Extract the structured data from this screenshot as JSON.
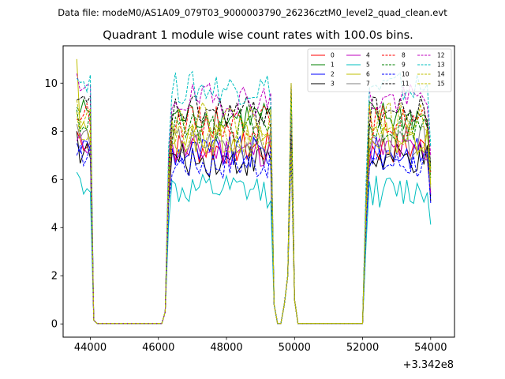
{
  "chart_data": {
    "type": "line",
    "subtitle": "Data file: modeM0/AS1A09_079T03_9000003790_26236cztM0_level2_quad_clean.evt",
    "title": "Quadrant 1 module wise count rates with 100.0s bins.",
    "xlabel": "",
    "ylabel": "",
    "x_offset_label": "+3.342e8",
    "xlim": [
      43200,
      54700
    ],
    "ylim": [
      -0.55,
      11.55
    ],
    "x_ticks": [
      44000,
      46000,
      48000,
      50000,
      52000,
      54000
    ],
    "x_tick_labels": [
      "44000",
      "46000",
      "48000",
      "50000",
      "52000",
      "54000"
    ],
    "y_ticks": [
      0,
      2,
      4,
      6,
      8,
      10
    ],
    "y_tick_labels": [
      "0",
      "2",
      "4",
      "6",
      "8",
      "10"
    ],
    "legend_position": "upper-right",
    "segments": [
      {
        "name": "seg1",
        "start": 43600,
        "n_plateau": 5
      },
      {
        "name": "gap1",
        "start": 44100,
        "end": 46100
      },
      {
        "name": "seg2",
        "start": 46200,
        "end": 49300
      },
      {
        "name": "spike",
        "at": 49900
      },
      {
        "name": "gap2",
        "start": 50100,
        "end": 52000
      },
      {
        "name": "seg3",
        "start": 52100,
        "end": 54000
      }
    ],
    "series": [
      {
        "name": "0",
        "color": "#ff0000",
        "dash": false,
        "level": 7.3,
        "first": 8.0
      },
      {
        "name": "1",
        "color": "#008000",
        "dash": false,
        "level": 8.6,
        "first": 9.0
      },
      {
        "name": "2",
        "color": "#0000ff",
        "dash": false,
        "level": 7.1,
        "first": 7.5
      },
      {
        "name": "3",
        "color": "#000000",
        "dash": false,
        "level": 6.8,
        "first": 8.0
      },
      {
        "name": "4",
        "color": "#bf00bf",
        "dash": false,
        "level": 7.2,
        "first": 7.6
      },
      {
        "name": "5",
        "color": "#00bfbf",
        "dash": false,
        "level": 5.5,
        "first": 6.3
      },
      {
        "name": "6",
        "color": "#bfbf00",
        "dash": false,
        "level": 7.7,
        "first": 11.0
      },
      {
        "name": "7",
        "color": "#808080",
        "dash": false,
        "level": 7.5,
        "first": 8.3
      },
      {
        "name": "8",
        "color": "#ff0000",
        "dash": true,
        "level": 8.4,
        "first": 8.5
      },
      {
        "name": "9",
        "color": "#008000",
        "dash": true,
        "level": 8.1,
        "first": 8.9
      },
      {
        "name": "10",
        "color": "#0000ff",
        "dash": true,
        "level": 6.7,
        "first": 7.0
      },
      {
        "name": "11",
        "color": "#000000",
        "dash": true,
        "level": 8.8,
        "first": 9.3
      },
      {
        "name": "12",
        "color": "#bf00bf",
        "dash": true,
        "level": 9.3,
        "first": 10.4
      },
      {
        "name": "13",
        "color": "#00bfbf",
        "dash": true,
        "level": 9.8,
        "first": 10.2
      },
      {
        "name": "14",
        "color": "#bfbf00",
        "dash": true,
        "level": 7.6,
        "first": 8.8
      },
      {
        "name": "15",
        "color": "#bfbf00",
        "dash": true,
        "level": 8.5,
        "first": 9.3
      }
    ]
  }
}
